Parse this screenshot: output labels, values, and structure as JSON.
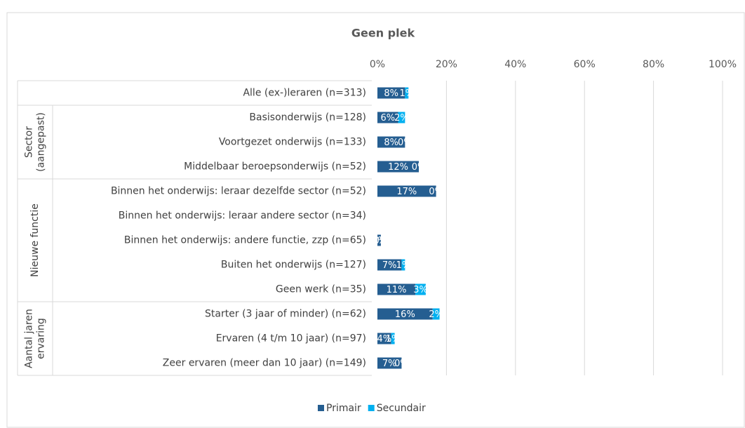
{
  "chart_data": {
    "type": "stacked-bar-horizontal",
    "title": "Geen plek",
    "categories": [
      "Alle (ex-)leraren (n=313)",
      "Basisonderwijs (n=128)",
      "Voortgezet onderwijs (n=133)",
      "Middelbaar beroepsonderwijs (n=52)",
      "Binnen het onderwijs: leraar dezelfde sector (n=52)",
      "Binnen het onderwijs: leraar andere sector  (n=34)",
      "Binnen het onderwijs: andere functie, zzp (n=65)",
      "Buiten het onderwijs (n=127)",
      "Geen werk (n=35)",
      "Starter (3 jaar of minder) (n=62)",
      "Ervaren (4 t/m 10 jaar) (n=97)",
      "Zeer ervaren (meer dan 10 jaar) (n=149)"
    ],
    "groups": [
      {
        "label": null,
        "rows": 1
      },
      {
        "label": [
          "Sector",
          "(aangepast)"
        ],
        "rows": 3
      },
      {
        "label": [
          "Nieuwe functie"
        ],
        "rows": 5
      },
      {
        "label": [
          "Aantal jaren",
          "ervaring"
        ],
        "rows": 3
      }
    ],
    "series": [
      {
        "name": "Primair",
        "color": "#255e91",
        "values": [
          8,
          6,
          8,
          12,
          17,
          0,
          1,
          7,
          11,
          16,
          4,
          7
        ],
        "value_labels": [
          "8%",
          "6%",
          "8%",
          "12%",
          "17%",
          null,
          "1%",
          "7%",
          "11%",
          "16%",
          "4%",
          "7%"
        ]
      },
      {
        "name": "Secundair",
        "color": "#00b0f0",
        "values": [
          1,
          2,
          0,
          0,
          0,
          0,
          0,
          1,
          3,
          2,
          1,
          0
        ],
        "value_labels": [
          "1%",
          "2%",
          "0%",
          "0%",
          "0%",
          null,
          "0%",
          "1%",
          "3%",
          "2%",
          "1%",
          "0%"
        ]
      }
    ],
    "xlim": [
      0,
      100
    ],
    "xticks": [
      {
        "value": 0,
        "label": "0%"
      },
      {
        "value": 20,
        "label": "20%"
      },
      {
        "value": 40,
        "label": "40%"
      },
      {
        "value": 60,
        "label": "60%"
      },
      {
        "value": 80,
        "label": "80%"
      },
      {
        "value": 100,
        "label": "100%"
      }
    ],
    "grid": true,
    "legend": "bottom"
  }
}
